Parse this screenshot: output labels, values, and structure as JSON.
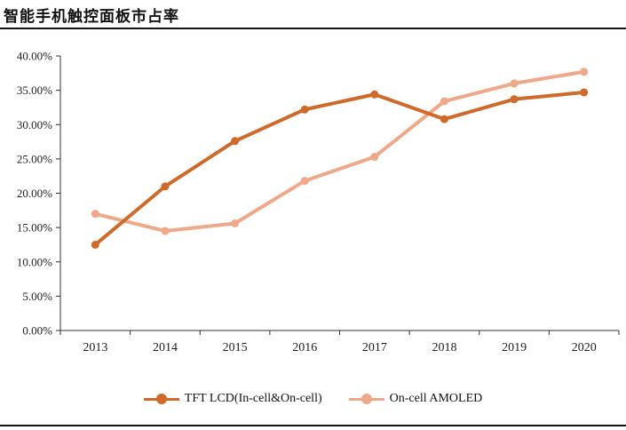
{
  "header": {
    "title": "智能手机触控面板市占率"
  },
  "colors": {
    "series_1": "#D06A2A",
    "series_2": "#EFA88A",
    "axis": "#333333"
  },
  "chart_data": {
    "type": "line",
    "x": [
      "2013",
      "2014",
      "2015",
      "2016",
      "2017",
      "2018",
      "2019",
      "2020"
    ],
    "series": [
      {
        "name": "TFT LCD(In-cell&On-cell)",
        "values": [
          12.5,
          21.0,
          27.6,
          32.2,
          34.4,
          30.8,
          33.7,
          34.7
        ]
      },
      {
        "name": "On-cell AMOLED",
        "values": [
          17.0,
          14.5,
          15.6,
          21.8,
          25.3,
          33.4,
          36.0,
          37.7
        ]
      }
    ],
    "yticks": [
      "0.00%",
      "5.00%",
      "10.00%",
      "15.00%",
      "20.00%",
      "25.00%",
      "30.00%",
      "35.00%",
      "40.00%"
    ],
    "ylim": [
      0,
      40
    ],
    "legend_position": "bottom",
    "grid": false
  }
}
